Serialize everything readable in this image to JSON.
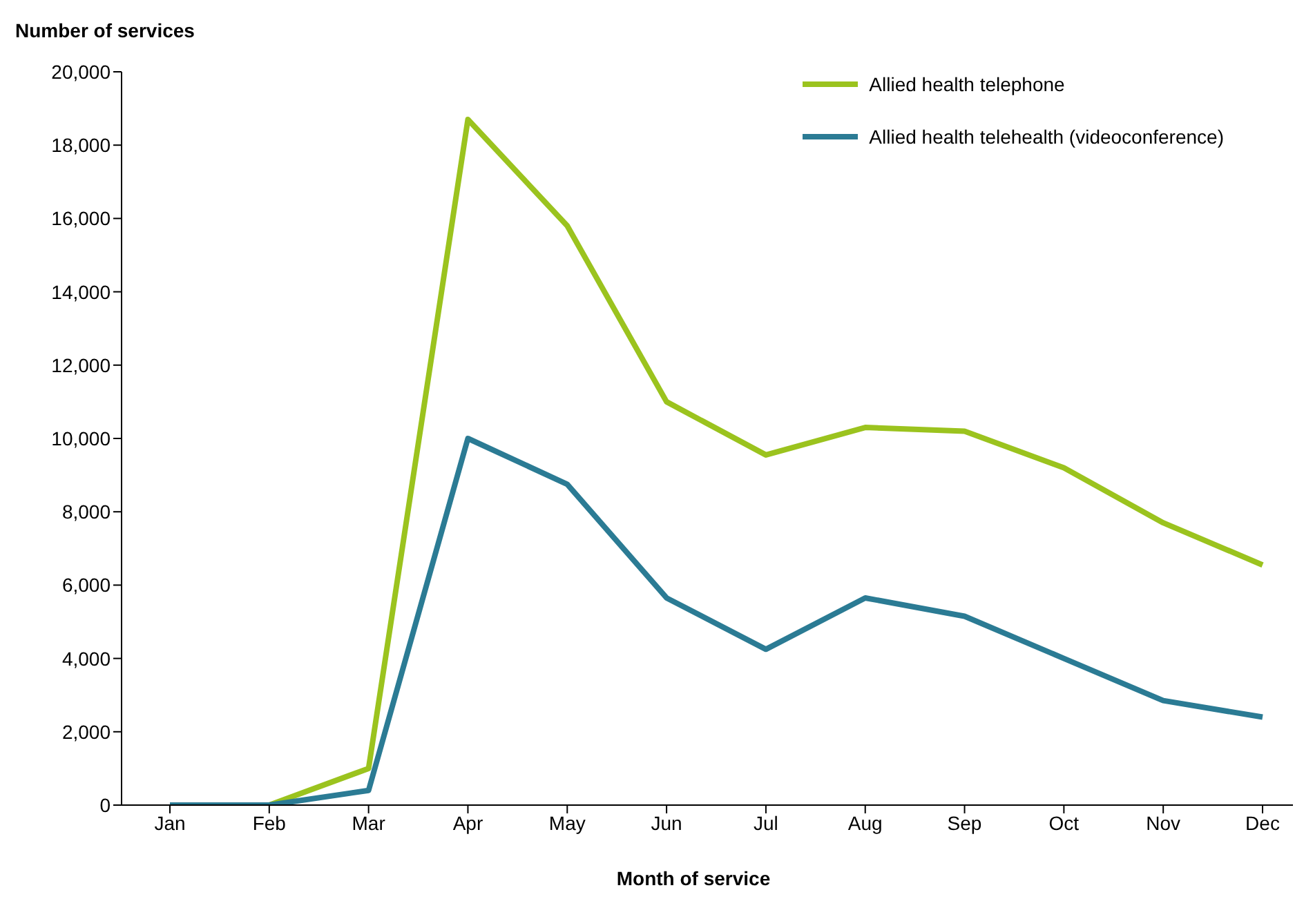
{
  "chart_data": {
    "type": "line",
    "ylabel": "Number of services",
    "xlabel": "Month of service",
    "categories": [
      "Jan",
      "Feb",
      "Mar",
      "Apr",
      "May",
      "Jun",
      "Jul",
      "Aug",
      "Sep",
      "Oct",
      "Nov",
      "Dec"
    ],
    "series": [
      {
        "name": "Allied health telephone",
        "color": "#9bc31e",
        "values": [
          0,
          0,
          1000,
          18700,
          15800,
          11000,
          9550,
          10300,
          10200,
          9200,
          7700,
          6550
        ]
      },
      {
        "name": "Allied health telehealth (videoconference)",
        "color": "#2b7b94",
        "values": [
          0,
          0,
          400,
          10000,
          8750,
          5650,
          4250,
          5650,
          5150,
          4000,
          2850,
          2400
        ]
      }
    ],
    "ylim": [
      0,
      20000
    ],
    "yticks": [
      0,
      {
        "value": 2000,
        "label": "2,000"
      },
      {
        "value": 4000,
        "label": "4,000"
      },
      {
        "value": 6000,
        "label": "6,000"
      },
      {
        "value": 8000,
        "label": "8,000"
      },
      {
        "value": 10000,
        "label": "10,000"
      },
      {
        "value": 12000,
        "label": "12,000"
      },
      {
        "value": 14000,
        "label": "14,000"
      },
      {
        "value": 16000,
        "label": "16,000"
      },
      {
        "value": 18000,
        "label": "18,000"
      },
      {
        "value": 20000,
        "label": "20,000"
      }
    ],
    "grid": false,
    "legend": "top right",
    "marker": "none",
    "line_style": "solid"
  }
}
